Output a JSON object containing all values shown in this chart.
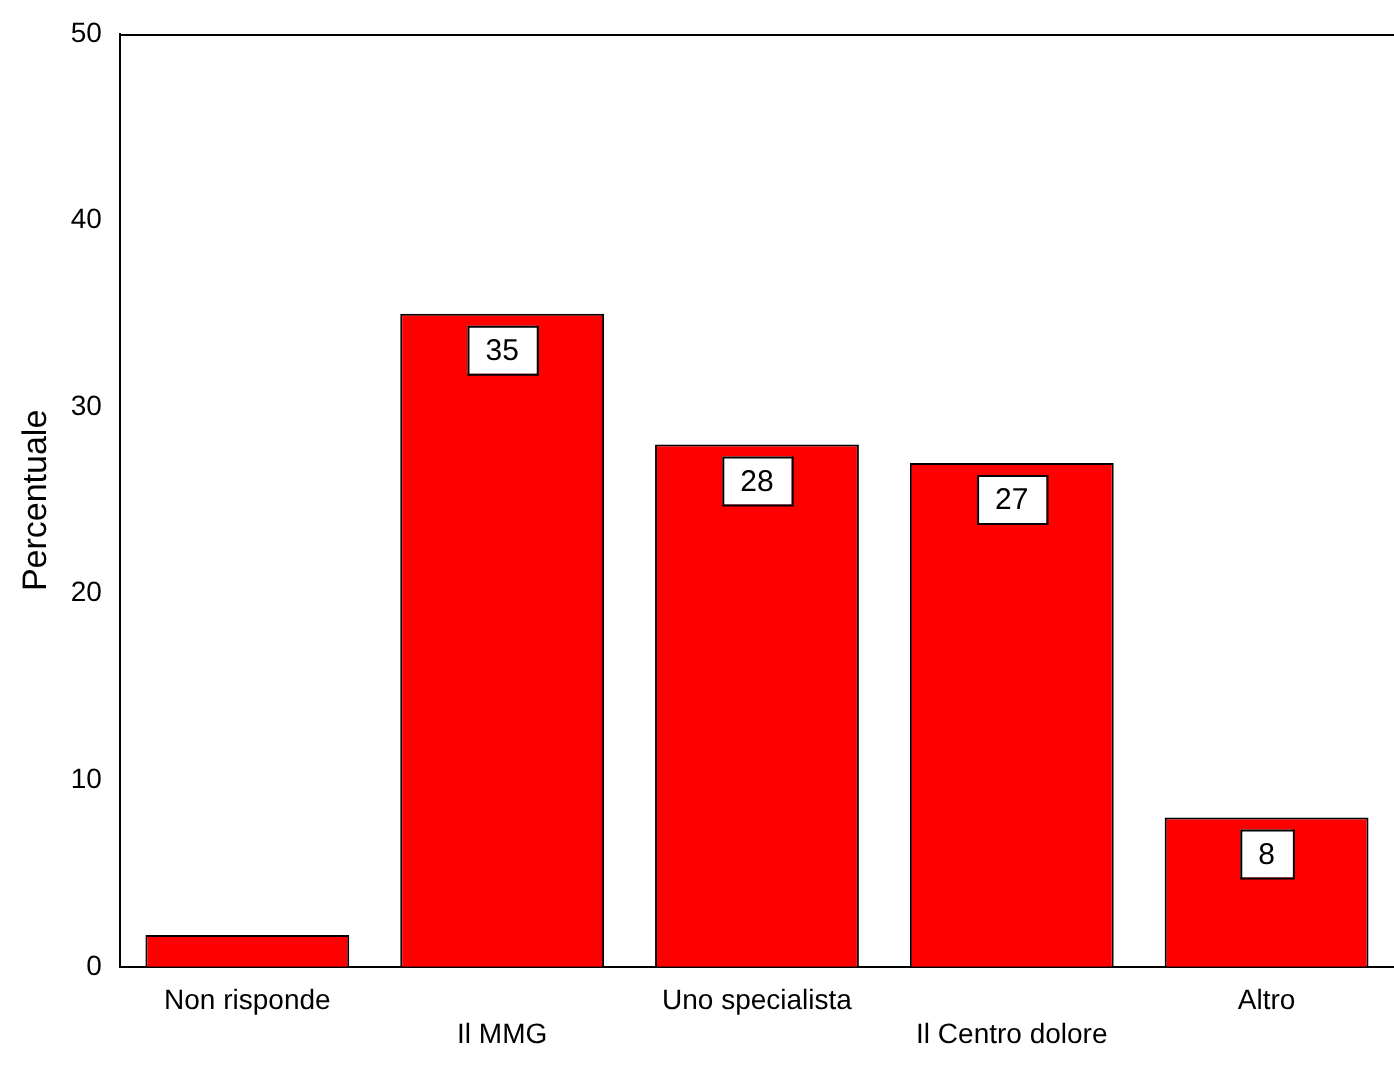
{
  "chart_data": {
    "type": "bar",
    "ylabel": "Percentuale",
    "categories": [
      "Non risponde",
      "Il MMG",
      "Uno specialista",
      "Il Centro dolore",
      "Altro"
    ],
    "values": [
      1.7,
      35,
      28,
      27,
      8
    ],
    "value_labels": [
      null,
      "35",
      "28",
      "27",
      "8"
    ],
    "color": "#ff0000",
    "ylim": [
      0,
      50
    ],
    "yticks": [
      0,
      10,
      20,
      30,
      40,
      50
    ],
    "grid": false,
    "legend": false
  }
}
